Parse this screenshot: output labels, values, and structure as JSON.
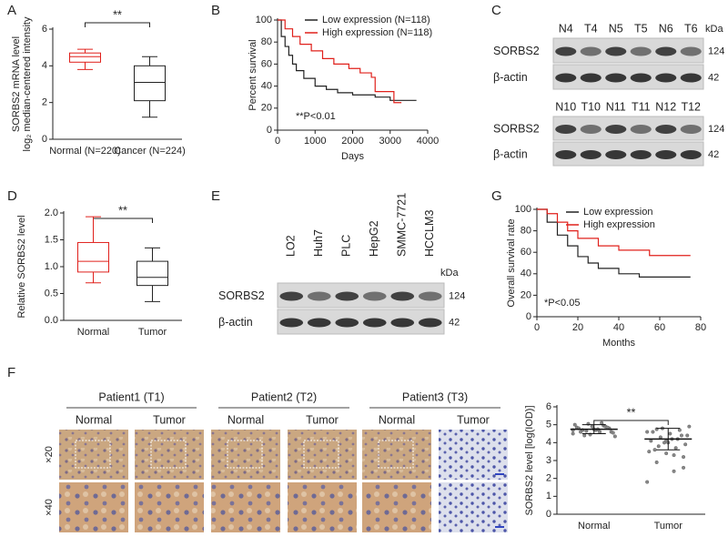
{
  "panel_labels": [
    "A",
    "B",
    "C",
    "D",
    "E",
    "F",
    "G"
  ],
  "chart_data": [
    {
      "type": "box",
      "ylabel": [
        "SORBS2 mRNA level",
        "log₂ median-centered intensity"
      ],
      "categories": [
        "Normal (N=220)",
        "Cancer (N=224)"
      ],
      "boxes": [
        {
          "min": 3.8,
          "q1": 4.2,
          "median": 4.5,
          "q3": 4.7,
          "max": 4.9,
          "color": "#e0201b"
        },
        {
          "min": 1.2,
          "q1": 2.1,
          "median": 3.1,
          "q3": 4.0,
          "max": 4.5,
          "color": "#222222"
        }
      ],
      "ylim": [
        0,
        6
      ],
      "yticks": [
        0,
        2,
        4,
        6
      ],
      "annotation": "**"
    },
    {
      "type": "line",
      "xlabel": "Days",
      "ylabel": "Percent survival",
      "series": [
        {
          "name": "Low expression (N=118)",
          "color": "#222222",
          "x": [
            0,
            100,
            100,
            200,
            200,
            300,
            300,
            400,
            400,
            500,
            500,
            700,
            700,
            1000,
            1000,
            1300,
            1300,
            1600,
            1600,
            2000,
            2000,
            2600,
            2600,
            3000,
            3000,
            3700
          ],
          "values": [
            100,
            100,
            85,
            85,
            76,
            76,
            68,
            68,
            60,
            60,
            54,
            54,
            47,
            47,
            40,
            40,
            37,
            37,
            34,
            34,
            32,
            32,
            30,
            30,
            27,
            27
          ]
        },
        {
          "name": "High expression (N=118)",
          "color": "#e0201b",
          "x": [
            0,
            200,
            200,
            400,
            400,
            600,
            600,
            900,
            900,
            1200,
            1200,
            1500,
            1500,
            1900,
            1900,
            2200,
            2200,
            2500,
            2500,
            2600,
            2600,
            3100,
            3100,
            3300
          ],
          "values": [
            100,
            100,
            92,
            92,
            85,
            85,
            78,
            78,
            72,
            72,
            65,
            65,
            60,
            60,
            56,
            56,
            52,
            52,
            48,
            48,
            35,
            35,
            25,
            25
          ]
        }
      ],
      "xlim": [
        0,
        4000
      ],
      "xticks": [
        0,
        1000,
        2000,
        3000,
        4000
      ],
      "ylim": [
        0,
        100
      ],
      "yticks": [
        0,
        20,
        40,
        60,
        80,
        100
      ],
      "annotation": "**P<0.01"
    },
    {
      "type": "box",
      "ylabel": [
        "Relative SORBS2 level"
      ],
      "categories": [
        "Normal",
        "Tumor"
      ],
      "boxes": [
        {
          "min": 0.7,
          "q1": 0.9,
          "median": 1.1,
          "q3": 1.45,
          "max": 1.93,
          "color": "#e0201b"
        },
        {
          "min": 0.35,
          "q1": 0.65,
          "median": 0.8,
          "q3": 1.1,
          "max": 1.35,
          "color": "#222222"
        }
      ],
      "ylim": [
        0,
        2
      ],
      "yticks": [
        {
          "value": 0,
          "label": "0.0"
        },
        0.5,
        {
          "value": 1,
          "label": "1.0"
        },
        1.5,
        {
          "value": 2,
          "label": "2.0"
        }
      ],
      "annotation": "**"
    },
    {
      "type": "line",
      "xlabel": "Months",
      "ylabel": "Overall survival rate",
      "series": [
        {
          "name": "Low expression",
          "color": "#222222",
          "x": [
            0,
            5,
            5,
            10,
            10,
            15,
            15,
            20,
            20,
            25,
            25,
            30,
            30,
            40,
            40,
            50,
            50,
            75
          ],
          "values": [
            100,
            100,
            88,
            88,
            76,
            76,
            66,
            66,
            56,
            56,
            50,
            50,
            45,
            45,
            40,
            40,
            37,
            37
          ]
        },
        {
          "name": "High expression",
          "color": "#e0201b",
          "x": [
            0,
            5,
            5,
            10,
            10,
            15,
            15,
            20,
            20,
            30,
            30,
            40,
            40,
            55,
            55,
            75
          ],
          "values": [
            100,
            100,
            96,
            96,
            88,
            88,
            80,
            80,
            73,
            73,
            66,
            66,
            62,
            62,
            57,
            57
          ]
        }
      ],
      "xlim": [
        0,
        80
      ],
      "xticks": [
        0,
        20,
        40,
        60,
        80
      ],
      "ylim": [
        0,
        100
      ],
      "yticks": [
        0,
        20,
        40,
        60,
        80,
        100
      ],
      "annotation": "*P<0.05"
    },
    {
      "type": "dot",
      "ylabel": [
        "SORBS2 level [log(IOD)]"
      ],
      "groups": [
        {
          "name": "Normal",
          "mean": 4.75,
          "sd": 0.25,
          "values": [
            4.5,
            4.6,
            4.7,
            4.8,
            4.9,
            5.0,
            5.1,
            4.4,
            4.6,
            4.75,
            4.85,
            4.95,
            4.65,
            4.55,
            4.7,
            4.8,
            4.9,
            5.05,
            4.35,
            4.75,
            4.6,
            4.85,
            4.45,
            4.7
          ]
        },
        {
          "name": "Tumor",
          "mean": 4.2,
          "sd": 0.6,
          "values": [
            1.8,
            2.4,
            2.9,
            3.2,
            3.4,
            3.5,
            3.7,
            3.8,
            3.9,
            4.0,
            4.1,
            4.2,
            4.3,
            4.4,
            4.5,
            4.6,
            4.7,
            4.8,
            4.9,
            4.2,
            3.6,
            4.4,
            4.0,
            4.6,
            3.3,
            4.75,
            2.6,
            4.1
          ]
        }
      ],
      "ylim": [
        0,
        6
      ],
      "yticks": [
        0,
        1,
        2,
        3,
        4,
        5,
        6
      ],
      "annotation": "**"
    }
  ],
  "blots": [
    {
      "kda_label": "kDa",
      "lanes": [
        "N4",
        "T4",
        "N5",
        "T5",
        "N6",
        "T6"
      ],
      "rows": [
        {
          "name": "SORBS2",
          "kda": 124
        },
        {
          "name": "β-actin",
          "kda": 42
        }
      ]
    },
    {
      "lanes": [
        "N10",
        "T10",
        "N11",
        "T11",
        "N12",
        "T12"
      ],
      "rows": [
        {
          "name": "SORBS2",
          "kda": 124
        },
        {
          "name": "β-actin",
          "kda": 42
        }
      ]
    },
    {
      "kda_label": "kDa",
      "lanes": [
        "LO2",
        "Huh7",
        "PLC",
        "HepG2",
        "SMMC-7721",
        "HCCLM3"
      ],
      "rows": [
        {
          "name": "SORBS2",
          "kda": 124
        },
        {
          "name": "β-actin",
          "kda": 42
        }
      ]
    }
  ],
  "ihc": {
    "patients": [
      "Patient1 (T1)",
      "Patient2 (T2)",
      "Patient3 (T3)"
    ],
    "columns": [
      "Normal",
      "Tumor"
    ],
    "magnifications": [
      "×20",
      "×40"
    ]
  }
}
